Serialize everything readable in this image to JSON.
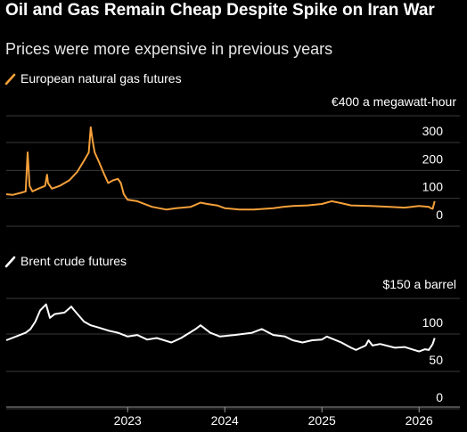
{
  "header": {
    "title": "Oil and Gas Remain Cheap Despite Spike on Iran War",
    "subtitle": "Prices were more expensive in previous years"
  },
  "colors": {
    "gas": "#f5a03a",
    "oil": "#ffffff",
    "grid": "#3a3a3a",
    "axis": "#9a9a9a"
  },
  "chart_data": [
    {
      "type": "line",
      "legend": "European natural gas futures",
      "unit_label": "€400 a megawatt-hour",
      "ylim": [
        0,
        400
      ],
      "yticks": [
        0,
        100,
        200,
        300
      ],
      "xlim": [
        2021.75,
        2026.42
      ],
      "x": [
        2021.75,
        2021.82,
        2021.9,
        2021.95,
        2021.97,
        2021.99,
        2022.02,
        2022.08,
        2022.15,
        2022.17,
        2022.18,
        2022.22,
        2022.3,
        2022.4,
        2022.48,
        2022.55,
        2022.6,
        2022.62,
        2022.64,
        2022.66,
        2022.7,
        2022.76,
        2022.8,
        2022.85,
        2022.9,
        2022.93,
        2022.96,
        2023.0,
        2023.1,
        2023.25,
        2023.4,
        2023.5,
        2023.65,
        2023.75,
        2023.82,
        2023.92,
        2024.0,
        2024.15,
        2024.3,
        2024.5,
        2024.6,
        2024.7,
        2024.85,
        2025.0,
        2025.1,
        2025.2,
        2025.3,
        2025.5,
        2025.7,
        2025.85,
        2026.0,
        2026.1,
        2026.12,
        2026.14,
        2026.16
      ],
      "values": [
        70,
        68,
        75,
        80,
        220,
        100,
        80,
        90,
        100,
        140,
        110,
        90,
        100,
        120,
        150,
        190,
        220,
        310,
        260,
        220,
        190,
        140,
        110,
        120,
        125,
        110,
        70,
        50,
        45,
        25,
        15,
        20,
        25,
        40,
        35,
        30,
        20,
        15,
        15,
        20,
        25,
        28,
        30,
        35,
        45,
        38,
        30,
        28,
        25,
        22,
        28,
        25,
        20,
        18,
        45
      ]
    },
    {
      "type": "line",
      "legend": "Brent crude futures",
      "unit_label": "$150 a barrel",
      "ylim": [
        0,
        150
      ],
      "yticks": [
        0,
        50,
        100
      ],
      "xlim": [
        2021.75,
        2026.42
      ],
      "xticks": [
        "2023",
        "2024",
        "2025",
        "2026"
      ],
      "x": [
        2021.75,
        2021.85,
        2021.95,
        2022.0,
        2022.05,
        2022.1,
        2022.16,
        2022.2,
        2022.25,
        2022.35,
        2022.42,
        2022.45,
        2022.55,
        2022.62,
        2022.7,
        2022.8,
        2022.9,
        2023.0,
        2023.1,
        2023.2,
        2023.3,
        2023.45,
        2023.55,
        2023.7,
        2023.75,
        2023.85,
        2023.95,
        2024.1,
        2024.28,
        2024.38,
        2024.5,
        2024.62,
        2024.7,
        2024.8,
        2024.9,
        2025.0,
        2025.05,
        2025.2,
        2025.3,
        2025.35,
        2025.45,
        2025.48,
        2025.52,
        2025.6,
        2025.75,
        2025.85,
        2025.95,
        2026.0,
        2026.06,
        2026.1,
        2026.13,
        2026.14,
        2026.16
      ],
      "values": [
        75,
        80,
        85,
        90,
        100,
        115,
        123,
        105,
        110,
        112,
        120,
        115,
        100,
        95,
        92,
        88,
        85,
        80,
        82,
        76,
        78,
        72,
        78,
        90,
        95,
        85,
        80,
        82,
        85,
        90,
        82,
        80,
        75,
        72,
        75,
        76,
        80,
        72,
        65,
        62,
        68,
        75,
        68,
        70,
        65,
        66,
        62,
        60,
        63,
        62,
        68,
        70,
        78
      ]
    }
  ]
}
